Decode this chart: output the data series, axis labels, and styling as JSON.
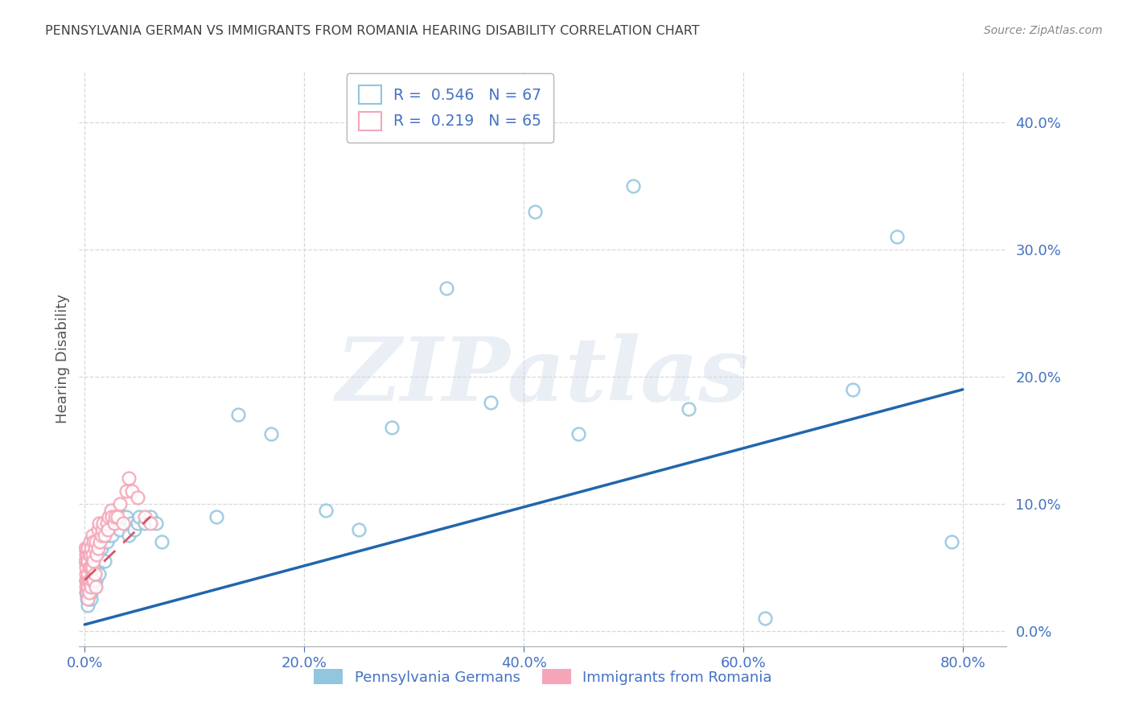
{
  "title": "PENNSYLVANIA GERMAN VS IMMIGRANTS FROM ROMANIA HEARING DISABILITY CORRELATION CHART",
  "source": "Source: ZipAtlas.com",
  "ylabel": "Hearing Disability",
  "series1_label": "Pennsylvania Germans",
  "series1_color": "#92c5de",
  "series1_R": 0.546,
  "series1_N": 67,
  "series2_label": "Immigrants from Romania",
  "series2_color": "#f4a6b8",
  "series2_R": 0.219,
  "series2_N": 65,
  "xlim": [
    -0.005,
    0.84
  ],
  "ylim": [
    -0.012,
    0.44
  ],
  "xticks": [
    0.0,
    0.2,
    0.4,
    0.6,
    0.8
  ],
  "yticks": [
    0.0,
    0.1,
    0.2,
    0.3,
    0.4
  ],
  "watermark_text": "ZIPatlas",
  "background_color": "#ffffff",
  "grid_color": "#d8d8d8",
  "axis_color": "#4472c4",
  "title_color": "#404040",
  "source_color": "#888888",
  "line1_color": "#2166ac",
  "line2_color": "#d6566a",
  "series1_x": [
    0.001,
    0.001,
    0.002,
    0.002,
    0.002,
    0.003,
    0.003,
    0.003,
    0.004,
    0.004,
    0.004,
    0.005,
    0.005,
    0.005,
    0.006,
    0.006,
    0.007,
    0.007,
    0.008,
    0.008,
    0.009,
    0.01,
    0.01,
    0.011,
    0.012,
    0.013,
    0.015,
    0.015,
    0.017,
    0.018,
    0.02,
    0.02,
    0.022,
    0.025,
    0.025,
    0.027,
    0.028,
    0.03,
    0.032,
    0.033,
    0.035,
    0.038,
    0.04,
    0.042,
    0.045,
    0.048,
    0.05,
    0.055,
    0.06,
    0.065,
    0.07,
    0.12,
    0.14,
    0.17,
    0.22,
    0.25,
    0.28,
    0.33,
    0.37,
    0.41,
    0.45,
    0.5,
    0.55,
    0.62,
    0.7,
    0.74,
    0.79
  ],
  "series1_y": [
    0.03,
    0.04,
    0.025,
    0.038,
    0.03,
    0.02,
    0.035,
    0.03,
    0.025,
    0.04,
    0.03,
    0.03,
    0.035,
    0.04,
    0.025,
    0.03,
    0.04,
    0.035,
    0.05,
    0.045,
    0.035,
    0.04,
    0.045,
    0.05,
    0.055,
    0.045,
    0.065,
    0.07,
    0.075,
    0.055,
    0.07,
    0.08,
    0.075,
    0.085,
    0.075,
    0.09,
    0.085,
    0.085,
    0.08,
    0.09,
    0.09,
    0.09,
    0.075,
    0.085,
    0.08,
    0.085,
    0.09,
    0.085,
    0.09,
    0.085,
    0.07,
    0.09,
    0.17,
    0.155,
    0.095,
    0.08,
    0.16,
    0.27,
    0.18,
    0.33,
    0.155,
    0.35,
    0.175,
    0.01,
    0.19,
    0.31,
    0.07
  ],
  "series2_x": [
    0.0005,
    0.0005,
    0.001,
    0.001,
    0.001,
    0.001,
    0.001,
    0.002,
    0.002,
    0.002,
    0.002,
    0.002,
    0.003,
    0.003,
    0.003,
    0.003,
    0.003,
    0.003,
    0.004,
    0.004,
    0.004,
    0.004,
    0.005,
    0.005,
    0.005,
    0.005,
    0.006,
    0.006,
    0.006,
    0.007,
    0.007,
    0.007,
    0.007,
    0.008,
    0.008,
    0.008,
    0.009,
    0.009,
    0.01,
    0.01,
    0.011,
    0.012,
    0.012,
    0.013,
    0.014,
    0.015,
    0.016,
    0.017,
    0.018,
    0.02,
    0.021,
    0.022,
    0.024,
    0.025,
    0.027,
    0.028,
    0.03,
    0.032,
    0.035,
    0.038,
    0.04,
    0.043,
    0.048,
    0.055,
    0.06
  ],
  "series2_y": [
    0.055,
    0.065,
    0.035,
    0.04,
    0.045,
    0.05,
    0.06,
    0.03,
    0.04,
    0.055,
    0.06,
    0.065,
    0.025,
    0.035,
    0.04,
    0.045,
    0.055,
    0.065,
    0.03,
    0.04,
    0.05,
    0.06,
    0.04,
    0.05,
    0.06,
    0.07,
    0.035,
    0.05,
    0.065,
    0.04,
    0.05,
    0.06,
    0.075,
    0.04,
    0.055,
    0.07,
    0.045,
    0.065,
    0.035,
    0.07,
    0.06,
    0.065,
    0.08,
    0.085,
    0.07,
    0.075,
    0.08,
    0.085,
    0.075,
    0.085,
    0.08,
    0.09,
    0.095,
    0.09,
    0.085,
    0.09,
    0.09,
    0.1,
    0.085,
    0.11,
    0.12,
    0.11,
    0.105,
    0.09,
    0.085
  ],
  "line1_x_start": 0.0,
  "line1_x_end": 0.8,
  "line1_y_start": 0.005,
  "line1_y_end": 0.19,
  "line2_x_start": 0.0,
  "line2_x_end": 0.06,
  "line2_y_start": 0.04,
  "line2_y_end": 0.09
}
